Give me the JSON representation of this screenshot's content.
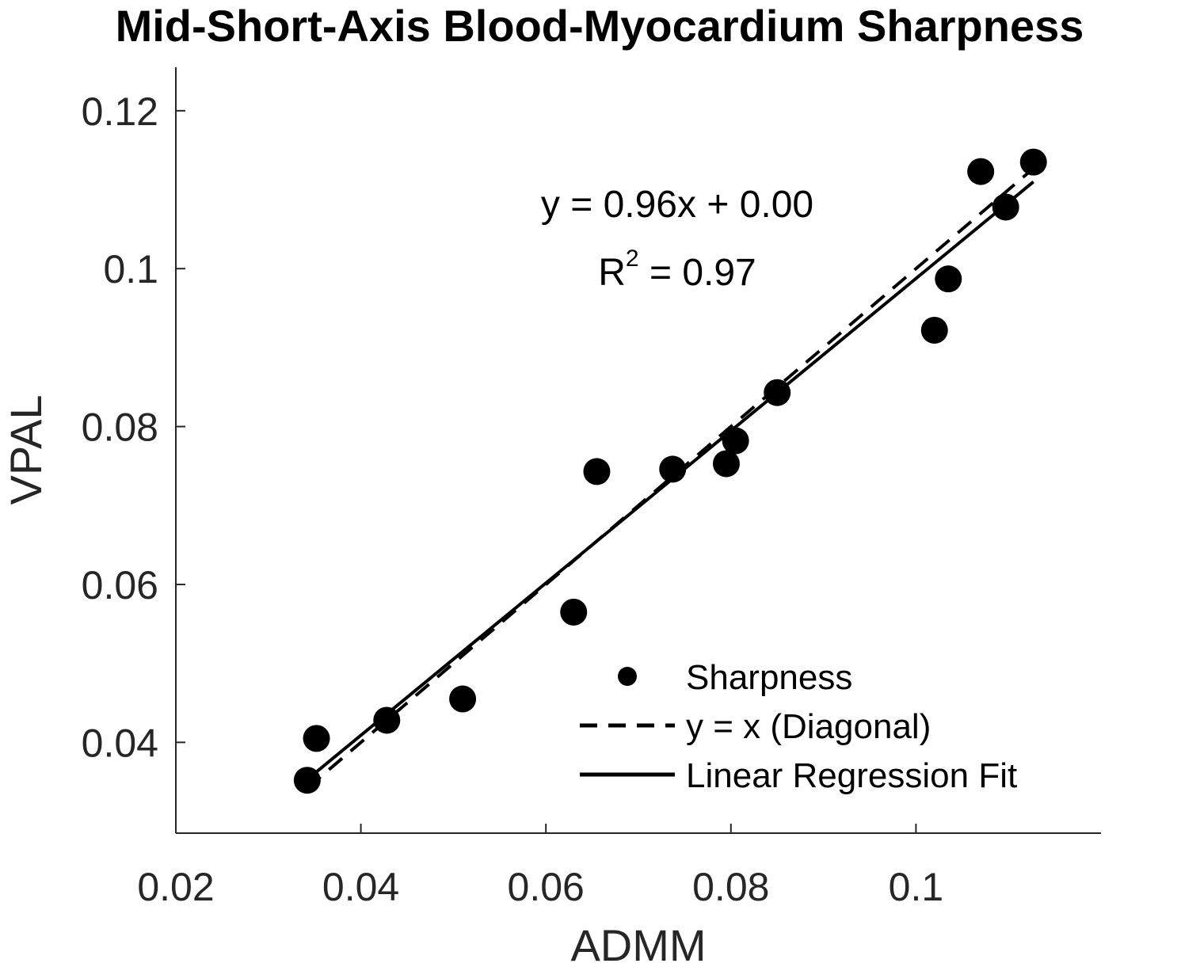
{
  "chart_data": {
    "type": "scatter",
    "title": "Mid-Short-Axis Blood-Myocardium Sharpness",
    "xlabel": "ADMM",
    "ylabel": "VPAL",
    "xlim": [
      0.02,
      0.12
    ],
    "ylim": [
      0.0285,
      0.1255
    ],
    "xticks": [
      0.02,
      0.04,
      0.06,
      0.08,
      0.1
    ],
    "xtick_labels": [
      "0.02",
      "0.04",
      "0.06",
      "0.08",
      "0.1"
    ],
    "yticks": [
      0.04,
      0.06,
      0.08,
      0.1,
      0.12
    ],
    "ytick_labels": [
      "0.04",
      "0.06",
      "0.08",
      "0.1",
      "0.12"
    ],
    "series": [
      {
        "name": "Sharpness",
        "style": "markers",
        "x": [
          0.0342,
          0.0352,
          0.0428,
          0.051,
          0.063,
          0.0655,
          0.0737,
          0.0795,
          0.0805,
          0.085,
          0.102,
          0.1035,
          0.107,
          0.1097,
          0.1127
        ],
        "y": [
          0.0352,
          0.0405,
          0.0428,
          0.0455,
          0.0565,
          0.0743,
          0.0746,
          0.0753,
          0.0782,
          0.0843,
          0.0922,
          0.0987,
          0.1123,
          0.1078,
          0.1135
        ]
      },
      {
        "name": "y = x (Diagonal)",
        "style": "dashed",
        "x": [
          0.0342,
          0.1127
        ],
        "y": [
          0.0342,
          0.1127
        ]
      },
      {
        "name": "Linear Regression Fit",
        "style": "solid",
        "x": [
          0.0342,
          0.1127
        ],
        "y": [
          0.0353,
          0.111
        ]
      }
    ],
    "annotations": {
      "equation": "y = 0.96x + 0.00",
      "r2_prefix": "R",
      "r2_exponent": "2",
      "r2_suffix": " = 0.97"
    },
    "legend_position": "bottom-right",
    "grid": false,
    "colors": {
      "axis": "#262626",
      "marker": "#000000",
      "line": "#000000"
    }
  }
}
